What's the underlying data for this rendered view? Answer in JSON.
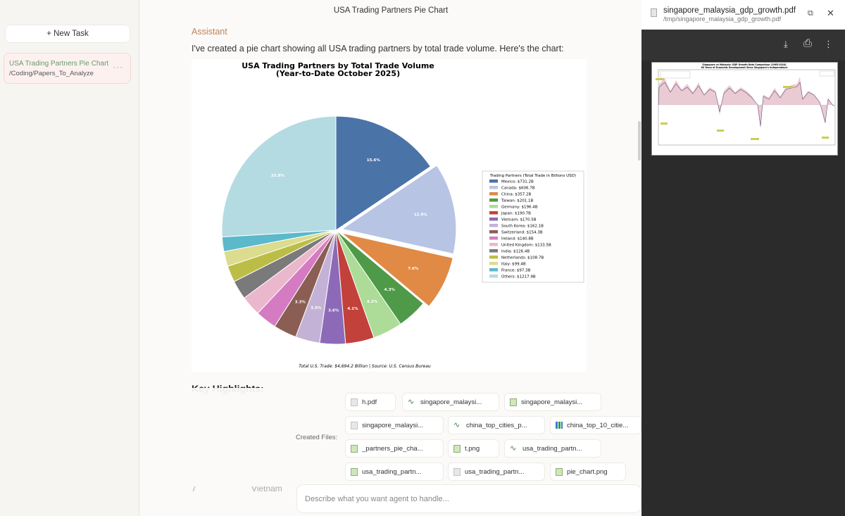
{
  "sidebar": {
    "new_task_label": "+ New Task",
    "task": {
      "title": "USA Trading Partners Pie Chart",
      "path": "/Coding/Papers_To_Analyze",
      "more": "···"
    }
  },
  "main": {
    "title": "USA Trading Partners Pie Chart",
    "role": "Assistant",
    "message": "I've created a pie chart showing all USA trading partners by total trade volume. Here's the chart:",
    "key_heading": "Key Highlights:",
    "faded_rank": "7",
    "faded_country": "Vietnam",
    "input_placeholder": "Describe what you want agent to handle..."
  },
  "files": {
    "label": "Created Files:",
    "items": [
      {
        "name": "h.pdf",
        "icon": "pdf-file-icon"
      },
      {
        "name": "singapore_malaysi...",
        "icon": "python-file-icon"
      },
      {
        "name": "singapore_malaysi...",
        "icon": "image-file-icon"
      },
      {
        "name": "singapore_malaysi...",
        "icon": "pdf-file-icon"
      },
      {
        "name": "china_top_cities_p...",
        "icon": "python-file-icon"
      },
      {
        "name": "china_top_10_citie...",
        "icon": "chart-file-icon"
      },
      {
        "name": "_partners_pie_cha...",
        "icon": "image-file-icon"
      },
      {
        "name": "t.png",
        "icon": "image-file-icon"
      },
      {
        "name": "usa_trading_partn...",
        "icon": "python-file-icon"
      },
      {
        "name": "usa_trading_partn...",
        "icon": "image-file-icon"
      },
      {
        "name": "usa_trading_partn...",
        "icon": "pdf-file-icon"
      },
      {
        "name": "pie_chart.png",
        "icon": "image-file-icon"
      }
    ]
  },
  "pdf_viewer": {
    "filename": "singapore_malaysia_gdp_growth.pdf",
    "path": "/tmp/singapore_malaysia_gdp_growth.pdf",
    "open_external": "⧉",
    "close": "✕",
    "download": "⤓",
    "print": "⎙",
    "more": "⋮",
    "page_title": "Singapore vs Malaysia: GDP Growth Rate Comparison (1965-2024)",
    "page_subtitle": "60 Years of Economic Development Since Singapore's Independence"
  },
  "chart_data": {
    "type": "pie",
    "title": "USA Trading Partners by Total Trade Volume",
    "subtitle": "(Year-to-Date October 2025)",
    "legend_title": "Trading Partners (Total Trade in Billions USD)",
    "legend_position": "right",
    "footer": "Total U.S. Trade: $4,694.2 Billion | Source: U.S. Census Bureau",
    "slices": [
      {
        "label": "Mexico: $731.2B",
        "value": 731.2,
        "pct": "15.6%",
        "color": "#4a73a8",
        "explode": false
      },
      {
        "label": "Canada: $606.7B",
        "value": 606.7,
        "pct": "12.9%",
        "color": "#b8c4e3",
        "explode": true
      },
      {
        "label": "China: $357.2B",
        "value": 357.2,
        "pct": "7.6%",
        "color": "#e08a45",
        "explode": true
      },
      {
        "label": "Taiwan: $201.1B",
        "value": 201.1,
        "pct": "4.3%",
        "color": "#4f9a48",
        "explode": false
      },
      {
        "label": "Germany: $196.4B",
        "value": 196.4,
        "pct": "4.2%",
        "color": "#acdc98",
        "explode": false
      },
      {
        "label": "Japan: $190.7B",
        "value": 190.7,
        "pct": "4.1%",
        "color": "#c2413b",
        "explode": false
      },
      {
        "label": "Vietnam: $170.5B",
        "value": 170.5,
        "pct": "3.6%",
        "color": "#8d6ab8",
        "explode": false
      },
      {
        "label": "South Korea: $162.1B",
        "value": 162.1,
        "pct": "3.5%",
        "color": "#c4b2d6",
        "explode": false
      },
      {
        "label": "Switzerland: $154.3B",
        "value": 154.3,
        "pct": "3.3%",
        "color": "#8b5e53",
        "explode": false
      },
      {
        "label": "Ireland: $140.8B",
        "value": 140.8,
        "pct": "",
        "color": "#d57bc2",
        "explode": false
      },
      {
        "label": "United Kingdom: $133.5B",
        "value": 133.5,
        "pct": "",
        "color": "#eab7cd",
        "explode": false
      },
      {
        "label": "India: $126.4B",
        "value": 126.4,
        "pct": "",
        "color": "#7a7a7a",
        "explode": false
      },
      {
        "label": "Netherlands: $108.7B",
        "value": 108.7,
        "pct": "",
        "color": "#bcbd46",
        "explode": false
      },
      {
        "label": "Italy: $99.4B",
        "value": 99.4,
        "pct": "",
        "color": "#dbdc8d",
        "explode": false
      },
      {
        "label": "France: $97.3B",
        "value": 97.3,
        "pct": "",
        "color": "#5cb8cb",
        "explode": false
      },
      {
        "label": "Others: $1217.9B",
        "value": 1217.9,
        "pct": "25.9%",
        "color": "#b4dbe2",
        "explode": false
      }
    ]
  }
}
